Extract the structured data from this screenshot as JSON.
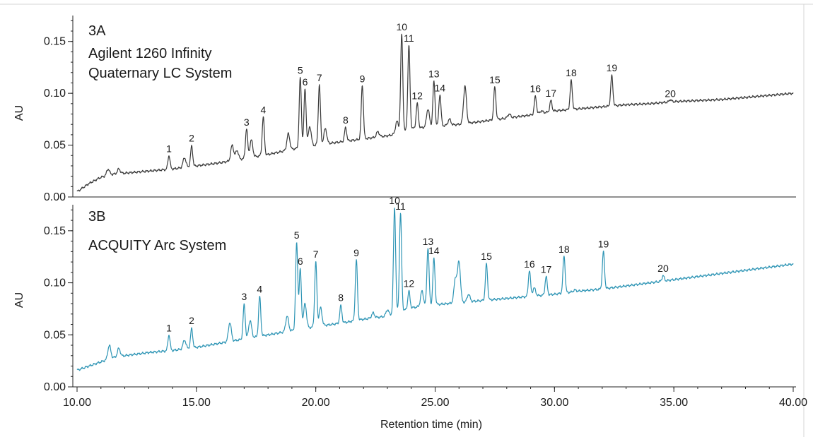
{
  "chart_data": [
    {
      "type": "line",
      "panel_id": "3A",
      "title": "Agilent 1260 Infinity Quaternary LC System",
      "title_lines": [
        "Agilent 1260 Infinity",
        "Quaternary LC System"
      ],
      "ylabel": "AU",
      "xlim": [
        10,
        40
      ],
      "ylim": [
        0,
        0.175
      ],
      "yticks": [
        0.0,
        0.05,
        0.1,
        0.15
      ],
      "ytick_labels": [
        "0.00",
        "0.05",
        "0.10",
        "0.15"
      ],
      "color": "#3a3a3a",
      "baseline": [
        [
          10.0,
          0.005
        ],
        [
          10.5,
          0.013
        ],
        [
          11.0,
          0.019
        ],
        [
          11.5,
          0.022
        ],
        [
          12.0,
          0.023
        ],
        [
          12.5,
          0.024
        ],
        [
          13.0,
          0.025
        ],
        [
          14.0,
          0.027
        ],
        [
          15.0,
          0.03
        ],
        [
          16.0,
          0.033
        ],
        [
          17.0,
          0.037
        ],
        [
          18.0,
          0.041
        ],
        [
          19.0,
          0.046
        ],
        [
          20.0,
          0.05
        ],
        [
          21.0,
          0.053
        ],
        [
          22.0,
          0.056
        ],
        [
          23.0,
          0.059
        ],
        [
          23.6,
          0.062
        ],
        [
          24.0,
          0.066
        ],
        [
          25.0,
          0.068
        ],
        [
          26.0,
          0.07
        ],
        [
          27.0,
          0.073
        ],
        [
          28.0,
          0.076
        ],
        [
          29.0,
          0.079
        ],
        [
          30.0,
          0.083
        ],
        [
          31.0,
          0.085
        ],
        [
          32.0,
          0.087
        ],
        [
          33.0,
          0.089
        ],
        [
          34.0,
          0.09
        ],
        [
          35.0,
          0.092
        ],
        [
          36.0,
          0.093
        ],
        [
          37.0,
          0.094
        ],
        [
          38.0,
          0.096
        ],
        [
          39.0,
          0.098
        ],
        [
          40.0,
          0.1
        ]
      ],
      "peaks": [
        {
          "label": "1",
          "x": 13.85,
          "y": 0.04
        },
        {
          "label": "2",
          "x": 14.8,
          "y": 0.049
        },
        {
          "label": "3",
          "x": 17.1,
          "y": 0.066
        },
        {
          "label": "4",
          "x": 17.8,
          "y": 0.077
        },
        {
          "label": "5",
          "x": 19.35,
          "y": 0.115
        },
        {
          "label": "6",
          "x": 19.55,
          "y": 0.104
        },
        {
          "label": "7",
          "x": 20.15,
          "y": 0.108
        },
        {
          "label": "8",
          "x": 21.25,
          "y": 0.067
        },
        {
          "label": "9",
          "x": 21.95,
          "y": 0.108
        },
        {
          "label": "10",
          "x": 23.6,
          "y": 0.157
        },
        {
          "label": "11",
          "x": 23.9,
          "y": 0.146
        },
        {
          "label": "12",
          "x": 24.25,
          "y": 0.09
        },
        {
          "label": "13",
          "x": 24.95,
          "y": 0.111
        },
        {
          "label": "14",
          "x": 25.2,
          "y": 0.099
        },
        {
          "label": "15",
          "x": 27.5,
          "y": 0.106
        },
        {
          "label": "16",
          "x": 29.2,
          "y": 0.097
        },
        {
          "label": "17",
          "x": 29.85,
          "y": 0.093
        },
        {
          "label": "18",
          "x": 30.7,
          "y": 0.112
        },
        {
          "label": "19",
          "x": 32.4,
          "y": 0.117
        },
        {
          "label": "20",
          "x": 34.85,
          "y": 0.094
        }
      ],
      "minor_peaks": [
        {
          "x": 11.3,
          "y": 0.027
        },
        {
          "x": 11.75,
          "y": 0.027
        },
        {
          "x": 14.5,
          "y": 0.038
        },
        {
          "x": 16.5,
          "y": 0.05
        },
        {
          "x": 16.7,
          "y": 0.045
        },
        {
          "x": 17.3,
          "y": 0.055
        },
        {
          "x": 18.85,
          "y": 0.061
        },
        {
          "x": 19.75,
          "y": 0.068
        },
        {
          "x": 20.4,
          "y": 0.066
        },
        {
          "x": 22.6,
          "y": 0.063
        },
        {
          "x": 23.4,
          "y": 0.073
        },
        {
          "x": 24.7,
          "y": 0.085
        },
        {
          "x": 25.6,
          "y": 0.075
        },
        {
          "x": 26.25,
          "y": 0.107
        },
        {
          "x": 28.1,
          "y": 0.08
        },
        {
          "x": 29.45,
          "y": 0.083
        }
      ]
    },
    {
      "type": "line",
      "panel_id": "3B",
      "title": "ACQUITY Arc System",
      "title_lines": [
        "ACQUITY Arc System"
      ],
      "ylabel": "AU",
      "xlabel": "Retention time (min)",
      "xlim": [
        10,
        40
      ],
      "ylim": [
        0,
        0.175
      ],
      "yticks": [
        0.0,
        0.05,
        0.1,
        0.15
      ],
      "ytick_labels": [
        "0.00",
        "0.05",
        "0.10",
        "0.15"
      ],
      "xticks": [
        10,
        15,
        20,
        25,
        30,
        35,
        40
      ],
      "xtick_labels": [
        "10.00",
        "15.00",
        "20.00",
        "25.00",
        "30.00",
        "35.00",
        "40.00"
      ],
      "color": "#2e95b5",
      "baseline": [
        [
          10.0,
          0.016
        ],
        [
          10.5,
          0.02
        ],
        [
          11.0,
          0.024
        ],
        [
          11.5,
          0.028
        ],
        [
          12.0,
          0.03
        ],
        [
          13.0,
          0.033
        ],
        [
          14.0,
          0.035
        ],
        [
          15.0,
          0.038
        ],
        [
          16.0,
          0.042
        ],
        [
          17.0,
          0.046
        ],
        [
          18.0,
          0.05
        ],
        [
          19.0,
          0.054
        ],
        [
          20.0,
          0.058
        ],
        [
          21.0,
          0.061
        ],
        [
          22.0,
          0.065
        ],
        [
          23.0,
          0.068
        ],
        [
          23.5,
          0.072
        ],
        [
          24.0,
          0.076
        ],
        [
          25.0,
          0.079
        ],
        [
          26.0,
          0.081
        ],
        [
          27.0,
          0.083
        ],
        [
          28.0,
          0.085
        ],
        [
          29.0,
          0.087
        ],
        [
          30.0,
          0.089
        ],
        [
          31.0,
          0.092
        ],
        [
          32.0,
          0.094
        ],
        [
          33.0,
          0.097
        ],
        [
          34.0,
          0.1
        ],
        [
          35.0,
          0.103
        ],
        [
          36.0,
          0.106
        ],
        [
          37.0,
          0.109
        ],
        [
          38.0,
          0.112
        ],
        [
          39.0,
          0.115
        ],
        [
          40.0,
          0.118
        ]
      ],
      "peaks": [
        {
          "label": "1",
          "x": 13.85,
          "y": 0.05
        },
        {
          "label": "2",
          "x": 14.8,
          "y": 0.056
        },
        {
          "label": "3",
          "x": 17.0,
          "y": 0.079
        },
        {
          "label": "4",
          "x": 17.65,
          "y": 0.087
        },
        {
          "label": "5",
          "x": 19.2,
          "y": 0.138
        },
        {
          "label": "6",
          "x": 19.35,
          "y": 0.113
        },
        {
          "label": "7",
          "x": 20.0,
          "y": 0.12
        },
        {
          "label": "8",
          "x": 21.05,
          "y": 0.078
        },
        {
          "label": "9",
          "x": 21.7,
          "y": 0.122
        },
        {
          "label": "10",
          "x": 23.3,
          "y": 0.172
        },
        {
          "label": "11",
          "x": 23.55,
          "y": 0.167
        },
        {
          "label": "12",
          "x": 23.9,
          "y": 0.092
        },
        {
          "label": "13",
          "x": 24.7,
          "y": 0.134
        },
        {
          "label": "14",
          "x": 24.95,
          "y": 0.123
        },
        {
          "label": "15",
          "x": 27.15,
          "y": 0.118
        },
        {
          "label": "16",
          "x": 28.95,
          "y": 0.112
        },
        {
          "label": "17",
          "x": 29.65,
          "y": 0.106
        },
        {
          "label": "18",
          "x": 30.4,
          "y": 0.126
        },
        {
          "label": "19",
          "x": 32.05,
          "y": 0.13
        },
        {
          "label": "20",
          "x": 34.55,
          "y": 0.107
        }
      ],
      "minor_peaks": [
        {
          "x": 11.35,
          "y": 0.04
        },
        {
          "x": 11.75,
          "y": 0.037
        },
        {
          "x": 14.5,
          "y": 0.045
        },
        {
          "x": 16.4,
          "y": 0.062
        },
        {
          "x": 17.25,
          "y": 0.064
        },
        {
          "x": 18.8,
          "y": 0.068
        },
        {
          "x": 19.55,
          "y": 0.08
        },
        {
          "x": 20.2,
          "y": 0.076
        },
        {
          "x": 22.4,
          "y": 0.071
        },
        {
          "x": 23.0,
          "y": 0.074
        },
        {
          "x": 24.45,
          "y": 0.092
        },
        {
          "x": 25.85,
          "y": 0.104
        },
        {
          "x": 26.0,
          "y": 0.12
        },
        {
          "x": 26.4,
          "y": 0.089
        },
        {
          "x": 29.15,
          "y": 0.095
        },
        {
          "x": 30.85,
          "y": 0.093
        }
      ]
    }
  ]
}
